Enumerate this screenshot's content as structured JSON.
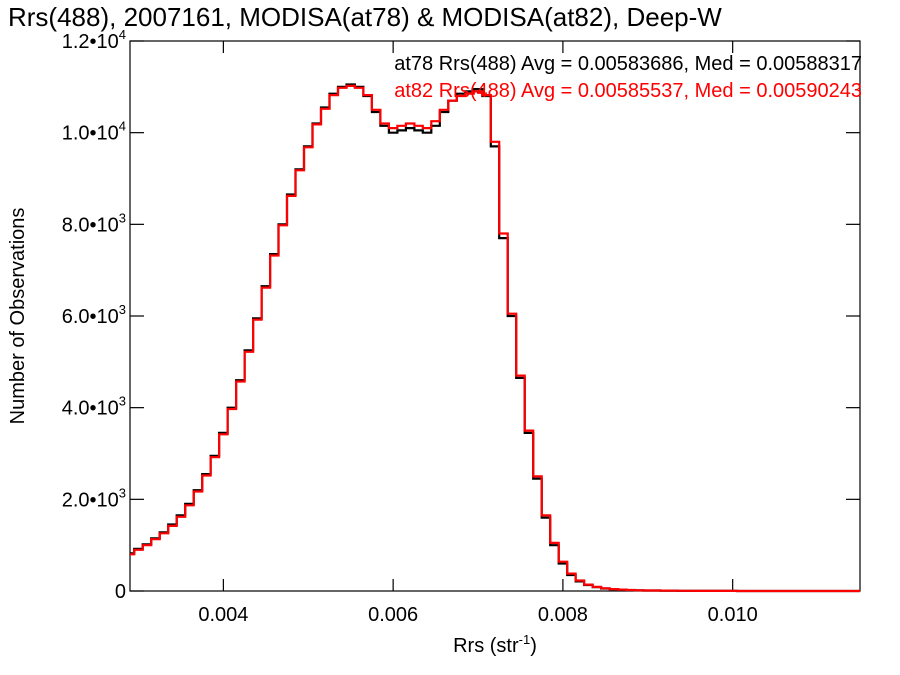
{
  "chart_data": {
    "type": "line",
    "title": "Rrs(488), 2007161, MODISA(at78) & MODISA(at82), Deep-W",
    "xlabel": "Rrs (str",
    "xlabel_sup": "-1",
    "xlabel_close": ")",
    "ylabel": "Number of Observations",
    "xlim": [
      0.0029,
      0.0115
    ],
    "ylim": [
      0,
      12000
    ],
    "x_ticks": [
      {
        "value": 0.004,
        "label": "0.004"
      },
      {
        "value": 0.006,
        "label": "0.006"
      },
      {
        "value": 0.008,
        "label": "0.008"
      },
      {
        "value": 0.01,
        "label": "0.010"
      }
    ],
    "y_ticks": [
      {
        "value": 0,
        "mant": "0",
        "exp": ""
      },
      {
        "value": 2000,
        "mant": "2.0•10",
        "exp": "3"
      },
      {
        "value": 4000,
        "mant": "4.0•10",
        "exp": "3"
      },
      {
        "value": 6000,
        "mant": "6.0•10",
        "exp": "3"
      },
      {
        "value": 8000,
        "mant": "8.0•10",
        "exp": "3"
      },
      {
        "value": 10000,
        "mant": "1.0•10",
        "exp": "4"
      },
      {
        "value": 12000,
        "mant": "1.2•10",
        "exp": "4"
      }
    ],
    "legend_placement": "top-right",
    "series": [
      {
        "name": "at78",
        "legend_text": "at78 Rrs(488) Avg = 0.00583686, Med = 0.00588317",
        "color": "#000000",
        "x": [
          0.0029,
          0.003,
          0.0031,
          0.0032,
          0.0033,
          0.0034,
          0.0035,
          0.0036,
          0.0037,
          0.0038,
          0.0039,
          0.004,
          0.0041,
          0.0042,
          0.0043,
          0.0044,
          0.0045,
          0.0046,
          0.0047,
          0.0048,
          0.0049,
          0.005,
          0.0051,
          0.0052,
          0.0053,
          0.0054,
          0.0055,
          0.0056,
          0.0057,
          0.0058,
          0.0059,
          0.006,
          0.0061,
          0.0062,
          0.0063,
          0.0064,
          0.0065,
          0.0066,
          0.0067,
          0.0068,
          0.0069,
          0.007,
          0.0071,
          0.0072,
          0.0073,
          0.0074,
          0.0075,
          0.0076,
          0.0077,
          0.0078,
          0.0079,
          0.008,
          0.0081,
          0.0082,
          0.0083,
          0.0084,
          0.0085,
          0.0086,
          0.0087,
          0.0088,
          0.0089,
          0.009,
          0.0091,
          0.0092,
          0.0093,
          0.0094,
          0.0095,
          0.0096,
          0.0097,
          0.0098,
          0.0099,
          0.01,
          0.0101,
          0.0102,
          0.0103,
          0.0104,
          0.0105,
          0.0106,
          0.0107,
          0.0108,
          0.0109,
          0.011,
          0.0111,
          0.0112,
          0.0113,
          0.0114,
          0.0115
        ],
        "y": [
          820,
          920,
          1020,
          1150,
          1280,
          1450,
          1650,
          1900,
          2200,
          2550,
          2950,
          3450,
          4000,
          4600,
          5250,
          5950,
          6650,
          7350,
          8000,
          8650,
          9200,
          9700,
          10200,
          10550,
          10850,
          11000,
          11050,
          11000,
          10800,
          10450,
          10150,
          10000,
          10050,
          10100,
          10050,
          10000,
          10150,
          10450,
          10700,
          10850,
          10900,
          10950,
          10800,
          9700,
          7700,
          6000,
          4650,
          3450,
          2450,
          1600,
          1000,
          600,
          350,
          210,
          130,
          85,
          55,
          40,
          28,
          20,
          15,
          12,
          10,
          8,
          6,
          5,
          4,
          3,
          3,
          2,
          2,
          2,
          1,
          1,
          1,
          1,
          1,
          1,
          1,
          0,
          0,
          0,
          0,
          0,
          0,
          0,
          0
        ]
      },
      {
        "name": "at82",
        "legend_text": "at82 Rrs(488) Avg = 0.00585537, Med = 0.00590243",
        "color": "#ff0000",
        "x": [
          0.0029,
          0.003,
          0.0031,
          0.0032,
          0.0033,
          0.0034,
          0.0035,
          0.0036,
          0.0037,
          0.0038,
          0.0039,
          0.004,
          0.0041,
          0.0042,
          0.0043,
          0.0044,
          0.0045,
          0.0046,
          0.0047,
          0.0048,
          0.0049,
          0.005,
          0.0051,
          0.0052,
          0.0053,
          0.0054,
          0.0055,
          0.0056,
          0.0057,
          0.0058,
          0.0059,
          0.006,
          0.0061,
          0.0062,
          0.0063,
          0.0064,
          0.0065,
          0.0066,
          0.0067,
          0.0068,
          0.0069,
          0.007,
          0.0071,
          0.0072,
          0.0073,
          0.0074,
          0.0075,
          0.0076,
          0.0077,
          0.0078,
          0.0079,
          0.008,
          0.0081,
          0.0082,
          0.0083,
          0.0084,
          0.0085,
          0.0086,
          0.0087,
          0.0088,
          0.0089,
          0.009,
          0.0091,
          0.0092,
          0.0093,
          0.0094,
          0.0095,
          0.0096,
          0.0097,
          0.0098,
          0.0099,
          0.01,
          0.0101,
          0.0102,
          0.0103,
          0.0104,
          0.0105,
          0.0106,
          0.0107,
          0.0108,
          0.0109,
          0.011,
          0.0111,
          0.0112,
          0.0113,
          0.0114,
          0.0115
        ],
        "y": [
          800,
          900,
          1000,
          1130,
          1260,
          1420,
          1620,
          1870,
          2170,
          2520,
          2920,
          3420,
          3970,
          4570,
          5220,
          5920,
          6620,
          7320,
          7980,
          8620,
          9180,
          9680,
          10180,
          10520,
          10820,
          10980,
          11020,
          10980,
          10820,
          10500,
          10200,
          10100,
          10150,
          10200,
          10150,
          10100,
          10250,
          10500,
          10700,
          10800,
          10850,
          10900,
          10820,
          9800,
          7800,
          6050,
          4700,
          3500,
          2500,
          1650,
          1050,
          640,
          380,
          230,
          140,
          90,
          58,
          42,
          30,
          22,
          16,
          12,
          10,
          8,
          6,
          5,
          4,
          3,
          3,
          2,
          2,
          2,
          1,
          1,
          1,
          1,
          1,
          1,
          1,
          0,
          0,
          0,
          0,
          0,
          0,
          0,
          0
        ]
      }
    ]
  }
}
